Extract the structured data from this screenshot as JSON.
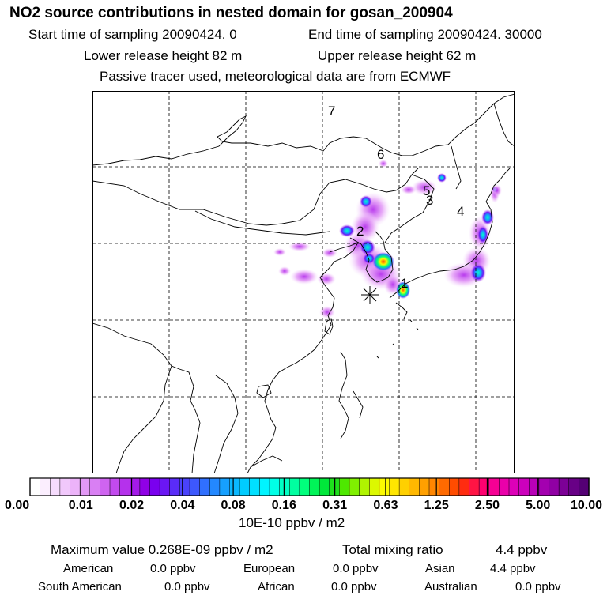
{
  "header": {
    "title": "NO2 source contributions in nested domain for gosan_200904",
    "start_sampling": "Start time of sampling 20090424.     0",
    "end_sampling": "End time of sampling 20090424. 30000",
    "lower_release": "Lower release height   82 m",
    "upper_release": "Upper release height   62 m",
    "tracer_note": "Passive tracer used, meteorological data are from ECMWF"
  },
  "map": {
    "receptor_symbol": "asterisk",
    "labels": [
      {
        "id": "7",
        "text": "7"
      },
      {
        "id": "6",
        "text": "6"
      },
      {
        "id": "5",
        "text": "5"
      },
      {
        "id": "3",
        "text": "3"
      },
      {
        "id": "4",
        "text": "4"
      },
      {
        "id": "2",
        "text": "2"
      },
      {
        "id": "1",
        "text": "1"
      }
    ]
  },
  "colorbar": {
    "ticks": [
      "0.00",
      "0.01",
      "0.02",
      "0.04",
      "0.08",
      "0.16",
      "0.31",
      "0.63",
      "1.25",
      "2.50",
      "5.00",
      "10.00"
    ],
    "colors": [
      "#ffffff",
      "#fbeefe",
      "#f6dcfd",
      "#f1c8fb",
      "#ecb3f9",
      "#e399f6",
      "#d97ff3",
      "#cf64f0",
      "#c24aee",
      "#b531ec",
      "#a41ae9",
      "#9000e6",
      "#7a00ef",
      "#6b16f4",
      "#5a2cf8",
      "#4a42fb",
      "#3d58fd",
      "#3070fe",
      "#2388ff",
      "#16a0ff",
      "#0ab8ff",
      "#00ccff",
      "#00e0ff",
      "#00f4ff",
      "#00ffe6",
      "#00ffc4",
      "#00ffa0",
      "#00ff7c",
      "#00f458",
      "#00e83a",
      "#1ee01c",
      "#4ee800",
      "#80f000",
      "#b0f400",
      "#dcf800",
      "#fbfa00",
      "#ffe600",
      "#ffd000",
      "#ffb800",
      "#ffa000",
      "#ff8600",
      "#ff6a00",
      "#ff4c00",
      "#ff2c10",
      "#ff1444",
      "#ff0070",
      "#f60094",
      "#ea00aa",
      "#dd00b8",
      "#cc00bc",
      "#b800b8",
      "#a400b0",
      "#9000a4",
      "#7c0096",
      "#680086",
      "#540074"
    ],
    "unit": "10E-10 ppbv / m2"
  },
  "stats": {
    "maximum": "Maximum value  0.268E-09 ppbv / m2",
    "total": "Total mixing ratio",
    "total_value": "4.4 ppbv",
    "regions": [
      {
        "name": "American",
        "value": "0.0 ppbv"
      },
      {
        "name": "European",
        "value": "0.0 ppbv"
      },
      {
        "name": "Asian",
        "value": "4.4 ppbv"
      },
      {
        "name": "South American",
        "value": "0.0 ppbv"
      },
      {
        "name": "African",
        "value": "0.0 ppbv"
      },
      {
        "name": "Australian",
        "value": "0.0 ppbv"
      }
    ]
  }
}
